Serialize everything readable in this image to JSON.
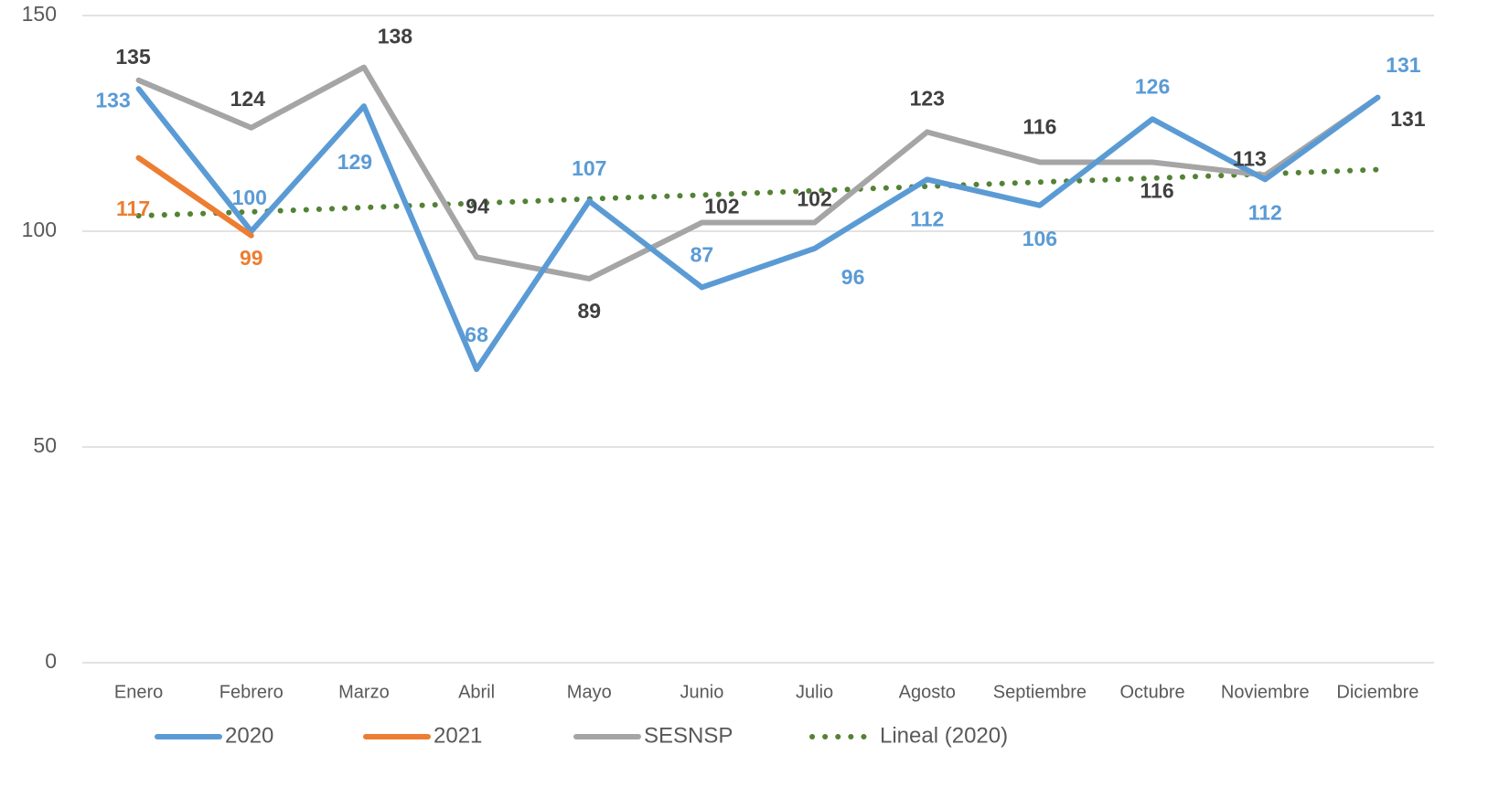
{
  "chart_data": {
    "type": "line",
    "categories": [
      "Enero",
      "Febrero",
      "Marzo",
      "Abril",
      "Mayo",
      "Junio",
      "Julio",
      "Agosto",
      "Septiembre",
      "Octubre",
      "Noviembre",
      "Diciembre"
    ],
    "series": [
      {
        "name": "2020",
        "color": "#5b9bd5",
        "label_color": "#5b9bd5",
        "line_style": "solid",
        "data_labels": true,
        "values": [
          133,
          100,
          129,
          68,
          107,
          87,
          96,
          112,
          106,
          126,
          112,
          131
        ]
      },
      {
        "name": "2021",
        "color": "#ed7d31",
        "label_color": "#ed7d31",
        "line_style": "solid",
        "data_labels": true,
        "values": [
          117,
          99,
          null,
          null,
          null,
          null,
          null,
          null,
          null,
          null,
          null,
          null
        ]
      },
      {
        "name": "SESNSP",
        "color": "#a5a5a5",
        "label_color": "#404040",
        "line_style": "solid",
        "data_labels": true,
        "values": [
          135,
          124,
          138,
          94,
          89,
          102,
          102,
          123,
          116,
          116,
          113,
          131
        ]
      },
      {
        "name": "Lineal (2020)",
        "color": "#548235",
        "line_style": "dotted",
        "data_labels": false,
        "values": [
          103.6,
          104.5,
          105.5,
          106.5,
          107.5,
          108.4,
          109.4,
          110.4,
          111.4,
          112.3,
          113.3,
          114.3
        ]
      }
    ],
    "ylim": [
      0,
      150
    ],
    "yticks": [
      0,
      50,
      100,
      150
    ],
    "grid": true,
    "legend": "bottom"
  }
}
